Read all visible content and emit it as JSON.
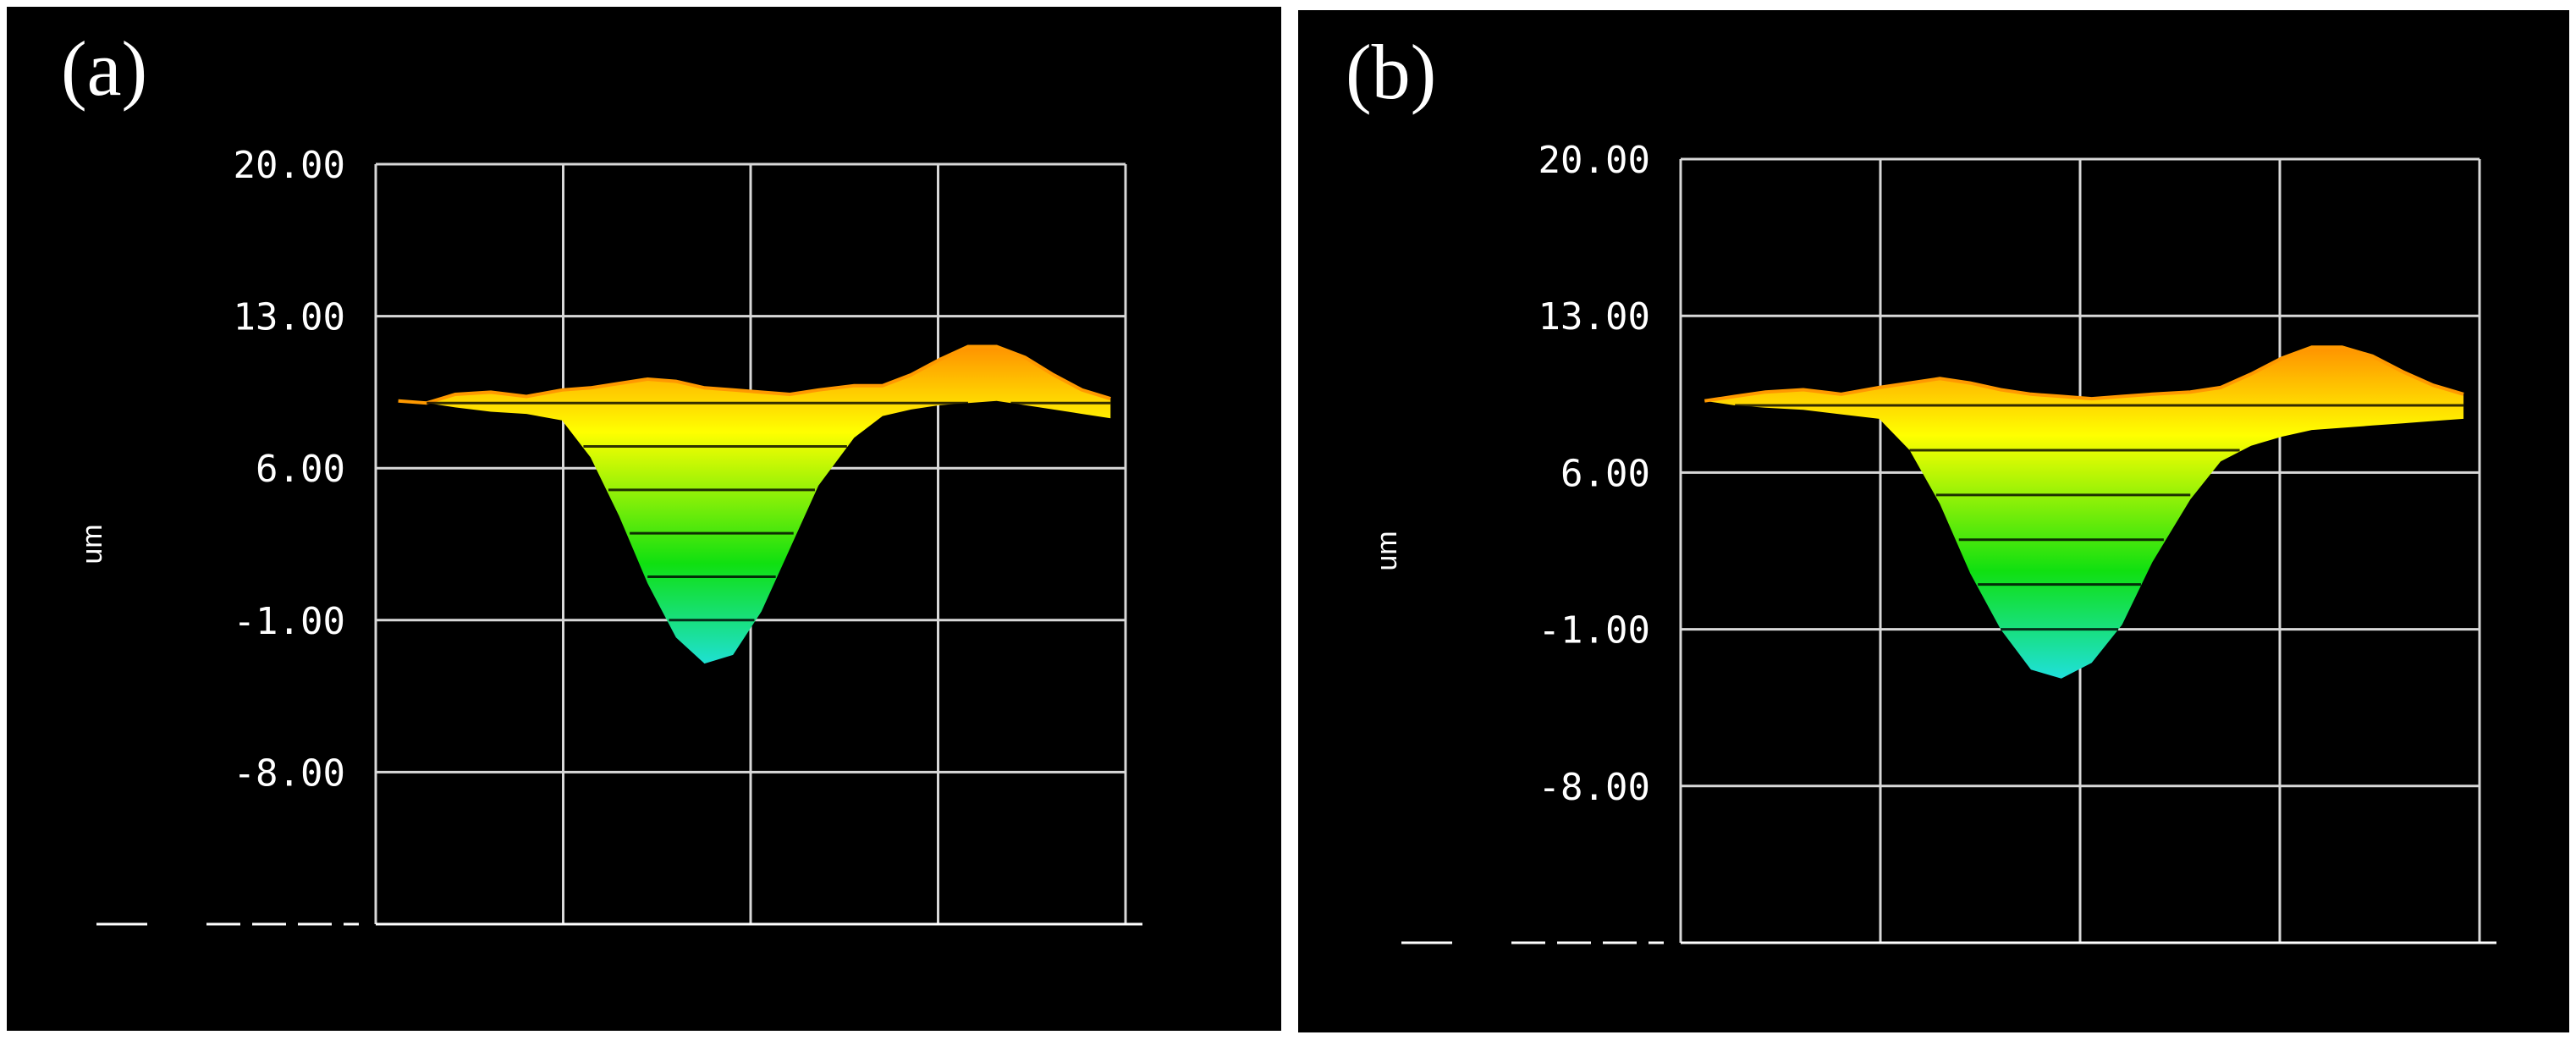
{
  "figure": {
    "panels": [
      {
        "id": "a",
        "label": "(a)"
      },
      {
        "id": "b",
        "label": "(b)"
      }
    ]
  },
  "chart_data": [
    {
      "type": "area",
      "panel": "(a)",
      "ylabel": "um",
      "xlabel": "",
      "yticks": [
        "20.00",
        "13.00",
        "6.00",
        "-1.00",
        "-8.00"
      ],
      "ylim": [
        -15,
        20
      ],
      "grid": true,
      "colormap": [
        "#20e0e8",
        "#10e010",
        "#ffff00",
        "#ff8800"
      ],
      "profile": {
        "x": [
          0,
          0.04,
          0.08,
          0.13,
          0.18,
          0.23,
          0.27,
          0.31,
          0.35,
          0.39,
          0.43,
          0.47,
          0.51,
          0.55,
          0.59,
          0.64,
          0.68,
          0.72,
          0.76,
          0.8,
          0.84,
          0.88,
          0.92,
          0.96,
          1.0
        ],
        "top": [
          9.1,
          9.0,
          9.4,
          9.5,
          9.3,
          9.6,
          9.7,
          9.9,
          10.1,
          10.0,
          9.7,
          9.6,
          9.5,
          9.4,
          9.6,
          9.8,
          9.8,
          10.3,
          11.0,
          11.6,
          11.6,
          11.1,
          10.3,
          9.6,
          9.2
        ],
        "bottom": [
          9.1,
          9.0,
          8.8,
          8.6,
          8.5,
          8.2,
          6.5,
          3.8,
          0.7,
          -1.8,
          -3.0,
          -2.6,
          -0.6,
          2.3,
          5.2,
          7.4,
          8.4,
          8.7,
          8.9,
          9.0,
          9.1,
          8.9,
          8.7,
          8.5,
          8.3
        ]
      },
      "contours": [
        9.0,
        7.0,
        5.0,
        3.0,
        1.0,
        -1.0
      ]
    },
    {
      "type": "area",
      "panel": "(b)",
      "ylabel": "um",
      "xlabel": "",
      "yticks": [
        "20.00",
        "13.00",
        "6.00",
        "-1.00",
        "-8.00"
      ],
      "ylim": [
        -15,
        20
      ],
      "grid": true,
      "colormap": [
        "#20e0e8",
        "#10e010",
        "#ffff00",
        "#ff8800"
      ],
      "profile": {
        "x": [
          0,
          0.04,
          0.08,
          0.13,
          0.18,
          0.23,
          0.27,
          0.31,
          0.35,
          0.39,
          0.43,
          0.47,
          0.51,
          0.55,
          0.59,
          0.64,
          0.68,
          0.72,
          0.76,
          0.8,
          0.84,
          0.88,
          0.92,
          0.96,
          1.0
        ],
        "top": [
          9.2,
          9.4,
          9.6,
          9.7,
          9.5,
          9.8,
          10.0,
          10.2,
          10.0,
          9.7,
          9.5,
          9.4,
          9.3,
          9.4,
          9.5,
          9.6,
          9.8,
          10.4,
          11.1,
          11.6,
          11.6,
          11.2,
          10.5,
          9.9,
          9.5
        ],
        "bottom": [
          9.2,
          9.0,
          8.9,
          8.8,
          8.6,
          8.4,
          7.0,
          4.6,
          1.5,
          -1.0,
          -2.8,
          -3.2,
          -2.5,
          -0.8,
          2.0,
          4.8,
          6.5,
          7.2,
          7.6,
          7.9,
          8.0,
          8.1,
          8.2,
          8.3,
          8.4
        ]
      },
      "contours": [
        9.0,
        7.0,
        5.0,
        3.0,
        1.0,
        -1.0
      ]
    }
  ]
}
